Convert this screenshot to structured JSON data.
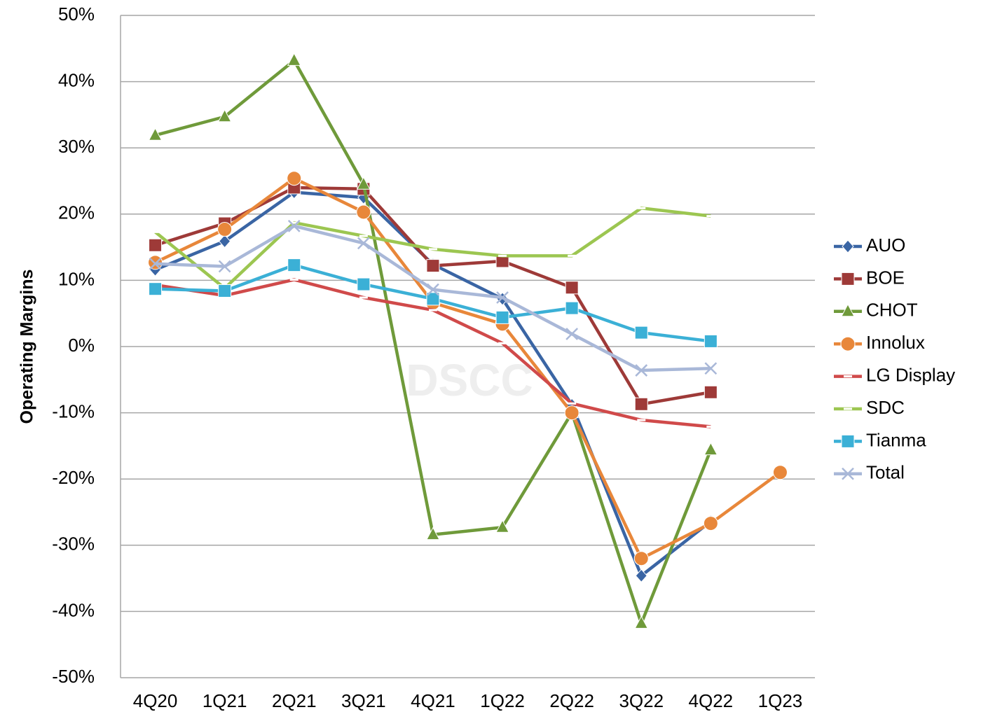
{
  "chart_data": {
    "type": "line",
    "y_label": "Operating Margins",
    "watermark": "DSCC",
    "categories": [
      "4Q20",
      "1Q21",
      "2Q21",
      "3Q21",
      "4Q21",
      "1Q22",
      "2Q22",
      "3Q22",
      "4Q22",
      "1Q23"
    ],
    "ylim": [
      -50,
      50
    ],
    "yticks": [
      {
        "value": -50,
        "label": "-50%"
      },
      {
        "value": -40,
        "label": "-40%"
      },
      {
        "value": -30,
        "label": "-30%"
      },
      {
        "value": -20,
        "label": "-20%"
      },
      {
        "value": -10,
        "label": "-10%"
      },
      {
        "value": 0,
        "label": "0%"
      },
      {
        "value": 10,
        "label": "10%"
      },
      {
        "value": 20,
        "label": "20%"
      },
      {
        "value": 30,
        "label": "30%"
      },
      {
        "value": 40,
        "label": "40%"
      },
      {
        "value": 50,
        "label": "50%"
      }
    ],
    "grid": true,
    "legend": "right",
    "series": [
      {
        "name": "AUO",
        "color": "#3a65a4",
        "marker": "diamond",
        "values": [
          11.6,
          15.9,
          23.3,
          22.5,
          12.4,
          7.2,
          -8.8,
          -34.6,
          -26.4,
          null
        ]
      },
      {
        "name": "BOE",
        "color": "#9e3a38",
        "marker": "square",
        "values": [
          15.3,
          18.6,
          24.0,
          23.8,
          12.2,
          12.9,
          8.9,
          -8.7,
          -6.9,
          null
        ]
      },
      {
        "name": "CHOT",
        "color": "#6f9a3a",
        "marker": "triangle",
        "values": [
          31.9,
          34.7,
          43.2,
          24.5,
          -28.4,
          -27.3,
          -10.0,
          -41.8,
          -15.6,
          null
        ]
      },
      {
        "name": "Innolux",
        "color": "#e8873a",
        "marker": "circle",
        "values": [
          12.7,
          17.7,
          25.4,
          20.3,
          6.6,
          3.4,
          -10.0,
          -32.0,
          -26.7,
          -19.0
        ]
      },
      {
        "name": "LG Display",
        "color": "#d04a4a",
        "marker": "dash",
        "values": [
          9.3,
          7.7,
          10.1,
          7.4,
          5.5,
          0.5,
          -8.6,
          -11.1,
          -12.1,
          null
        ]
      },
      {
        "name": "SDC",
        "color": "#9cc651",
        "marker": "dash",
        "values": [
          17.3,
          8.8,
          18.7,
          16.7,
          14.7,
          13.7,
          13.7,
          20.9,
          19.7,
          null
        ]
      },
      {
        "name": "Tianma",
        "color": "#3bb0d6",
        "marker": "square",
        "values": [
          8.7,
          8.4,
          12.3,
          9.4,
          7.2,
          4.4,
          5.8,
          2.1,
          0.8,
          null
        ]
      },
      {
        "name": "Total",
        "color": "#a9b8d8",
        "marker": "x",
        "values": [
          12.5,
          12.1,
          18.2,
          15.6,
          8.6,
          7.4,
          1.9,
          -3.6,
          -3.3,
          null
        ]
      }
    ]
  }
}
